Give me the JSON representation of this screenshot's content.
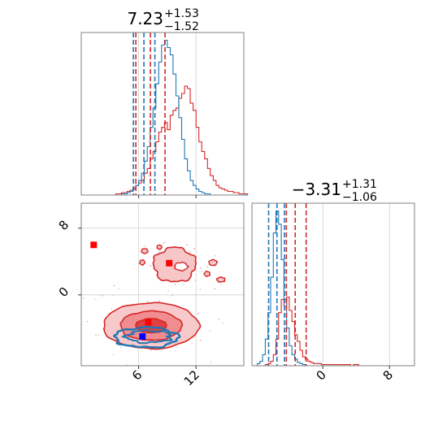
{
  "chart_data": {
    "type": "corner",
    "colors": {
      "red": "#d62728",
      "blue": "#1f77b4",
      "marker_red": "#ff0000",
      "marker_blue": "#0000ff",
      "grid": "#d0d0d0",
      "frame": "#808080"
    },
    "params": [
      {
        "title_main": "7.23",
        "title_sup": "+1.53",
        "title_sub": "−1.52",
        "range": [
          0,
          17
        ],
        "ticks": [
          6,
          12
        ],
        "tick_labels": [
          "6",
          "12"
        ]
      },
      {
        "title_main": "−3.31",
        "title_sup": "+1.31",
        "title_sub": "−1.06",
        "range": [
          -8.5,
          11
        ],
        "ticks": [
          0,
          8
        ],
        "tick_labels": [
          "0",
          "8"
        ]
      }
    ],
    "hist1d": [
      {
        "edges_start": 0,
        "bin_width": 0.3,
        "red": [
          0,
          0,
          0,
          0,
          0,
          0,
          0,
          0,
          0,
          0,
          0,
          0,
          1,
          1,
          2,
          2,
          3,
          4,
          6,
          8,
          10,
          12,
          18,
          22,
          30,
          36,
          44,
          52,
          56,
          60,
          54,
          66,
          70,
          72,
          80,
          84,
          90,
          88,
          76,
          70,
          56,
          44,
          36,
          30,
          22,
          16,
          12,
          8,
          6,
          5,
          4,
          3,
          3,
          2,
          2,
          1,
          1,
          1
        ],
        "blue": [
          0,
          0,
          0,
          0,
          0,
          0,
          0,
          0,
          0,
          0,
          0,
          0,
          0,
          0,
          1,
          1,
          2,
          3,
          5,
          8,
          12,
          18,
          28,
          40,
          56,
          72,
          92,
          110,
          124,
          128,
          122,
          116,
          100,
          82,
          64,
          46,
          30,
          20,
          12,
          8,
          5,
          3,
          2,
          1,
          1,
          0,
          0,
          0,
          0,
          0,
          0,
          0,
          0,
          0,
          0,
          0,
          0,
          0
        ],
        "red_q": [
          5.71,
          7.23,
          8.76
        ],
        "blue_q": [
          5.45,
          6.55,
          7.7
        ]
      },
      {
        "edges_start": -8.5,
        "bin_width": 0.32,
        "red": [
          0,
          0,
          0,
          0,
          0,
          1,
          2,
          4,
          10,
          24,
          48,
          60,
          54,
          62,
          50,
          40,
          28,
          22,
          14,
          8,
          6,
          4,
          3,
          2,
          2,
          2,
          1,
          1,
          1,
          1,
          1,
          1,
          1,
          1,
          1,
          1,
          1,
          0,
          1,
          1,
          0,
          0,
          0,
          0,
          0,
          0,
          0,
          0,
          0,
          0,
          0,
          0,
          0,
          0,
          0,
          0,
          0,
          0,
          0,
          0,
          0
        ],
        "blue": [
          0,
          0,
          2,
          4,
          10,
          24,
          48,
          80,
          120,
          140,
          128,
          96,
          60,
          34,
          18,
          10,
          6,
          3,
          2,
          1,
          0,
          0,
          0,
          0,
          0,
          0,
          0,
          0,
          0,
          0,
          0,
          0,
          0,
          0,
          0,
          0,
          0,
          0,
          0,
          0,
          0,
          0,
          0,
          0,
          0,
          0,
          0,
          0,
          0,
          0,
          0,
          0,
          0,
          0,
          0,
          0,
          0,
          0,
          0,
          0,
          0
        ],
        "red_q": [
          -4.37,
          -3.31,
          -2.0
        ],
        "blue_q": [
          -6.5,
          -5.5,
          -4.6
        ]
      }
    ],
    "contours": {
      "red_main": {
        "center": [
          7.3,
          -3.7
        ],
        "radii": [
          [
            5.0,
            2.75
          ],
          [
            3.2,
            1.75
          ],
          [
            1.6,
            0.85
          ]
        ]
      },
      "red_upper": {
        "center": [
          10.1,
          3.6
        ],
        "radius": [
          2.6,
          2.3
        ]
      },
      "blue_main": {
        "center": [
          6.8,
          -5.1
        ],
        "radius": [
          3.3,
          1.2
        ]
      }
    },
    "markers": [
      {
        "x": 1.3,
        "y": 6.0,
        "color": "marker_red"
      },
      {
        "x": 9.2,
        "y": 3.8,
        "color": "marker_red"
      },
      {
        "x": 7.0,
        "y": -3.3,
        "color": "marker_red"
      },
      {
        "x": 6.4,
        "y": -5.0,
        "color": "marker_blue"
      }
    ]
  }
}
